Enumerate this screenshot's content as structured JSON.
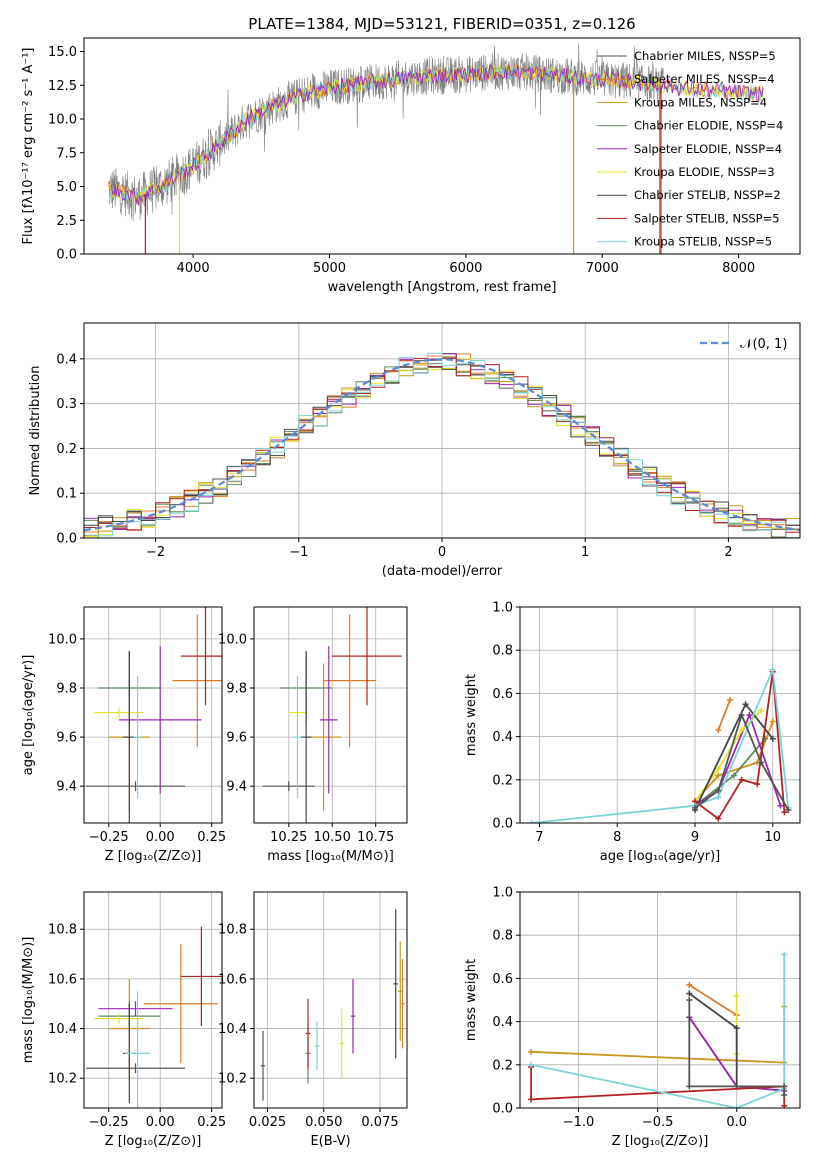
{
  "colors": [
    "#555555",
    "#e07b28",
    "#c9951d",
    "#5d8a5d",
    "#9b27b0",
    "#e6e22a",
    "#444444",
    "#b22222",
    "#7fd3d8"
  ],
  "chart_data": [
    {
      "type": "line",
      "id": "spectrum",
      "title": "PLATE=1384, MJD=53121, FIBERID=0351, z=0.126",
      "xlabel": "wavelength [Angstrom, rest frame]",
      "ylabel": "Flux [fλ10⁻¹⁷ erg cm⁻² s⁻¹ A⁻¹]",
      "xlim": [
        3200,
        8450
      ],
      "ylim": [
        0,
        16
      ],
      "xticks": [
        4000,
        5000,
        6000,
        7000,
        8000
      ],
      "yticks": [
        "0.0",
        "2.5",
        "5.0",
        "7.5",
        "10.0",
        "12.5",
        "15.0"
      ],
      "continuum_x": [
        3400,
        3600,
        3800,
        4000,
        4200,
        4400,
        4600,
        4800,
        5000,
        5200,
        5400,
        5600,
        5800,
        6000,
        6200,
        6400,
        6600,
        6800,
        7000,
        7200,
        7400,
        7600,
        7800,
        8000,
        8200
      ],
      "continuum_y": [
        4.8,
        4.2,
        5.2,
        6.5,
        8.2,
        10.0,
        11.0,
        11.8,
        12.3,
        12.6,
        12.8,
        13.1,
        13.2,
        13.3,
        13.5,
        13.5,
        13.3,
        13.1,
        12.9,
        12.8,
        12.5,
        12.3,
        12.1,
        12.0,
        11.8
      ],
      "legend": [
        "Chabrier MILES, N_SSP=5",
        "Salpeter MILES, N_SSP=4",
        "Kroupa MILES, N_SSP=4",
        "Chabrier ELODIE, N_SSP=4",
        "Salpeter ELODIE, N_SSP=4",
        "Kroupa ELODIE, N_SSP=3",
        "Chabrier STELIB, N_SSP=2",
        "Salpeter STELIB, N_SSP=5",
        "Kroupa STELIB, N_SSP=5"
      ]
    },
    {
      "type": "histogram",
      "id": "residuals",
      "xlabel": "(data-model)/error",
      "ylabel": "Normed distribution",
      "xlim": [
        -2.5,
        2.5
      ],
      "ylim": [
        0,
        0.48
      ],
      "xticks": [
        "−2",
        "−1",
        "0",
        "1",
        "2"
      ],
      "yticks": [
        "0.0",
        "0.1",
        "0.2",
        "0.3",
        "0.4"
      ],
      "legend": "𝒩(0, 1)",
      "gaussian": {
        "mean": 0,
        "sigma": 1
      }
    },
    {
      "type": "scatter",
      "id": "age_vs_Z",
      "xlabel": "Z [log₁₀(Z/Z⊙)]",
      "ylabel": "age  [log₁₀(age/yr)]",
      "xlim": [
        -0.37,
        0.3
      ],
      "ylim": [
        9.25,
        10.13
      ],
      "xticks": [
        "−0.25",
        "0.00",
        "0.25"
      ],
      "yticks": [
        "9.4",
        "9.6",
        "9.8",
        "10.0"
      ]
    },
    {
      "type": "scatter",
      "id": "age_vs_mass",
      "xlabel": "mass [log₁₀(M/M⊙)]",
      "xlim": [
        10.05,
        10.93
      ],
      "ylim": [
        9.25,
        10.13
      ],
      "xticks": [
        "10.25",
        "10.50",
        "10.75"
      ],
      "yticks": [
        "9.4",
        "9.6",
        "9.8",
        "10.0"
      ]
    },
    {
      "type": "line",
      "id": "massweight_vs_age",
      "xlabel": "age  [log₁₀(age/yr)]",
      "ylabel": "mass weight",
      "xlim": [
        6.75,
        10.35
      ],
      "ylim": [
        0,
        1
      ],
      "xticks": [
        "7",
        "8",
        "9",
        "10"
      ],
      "yticks": [
        "0.0",
        "0.2",
        "0.4",
        "0.6",
        "0.8",
        "1.0"
      ]
    },
    {
      "type": "scatter",
      "id": "mass_vs_Z",
      "xlabel": "Z [log₁₀(Z/Z⊙)]",
      "ylabel": "mass [log₁₀(M/M⊙)]",
      "xlim": [
        -0.37,
        0.3
      ],
      "ylim": [
        10.08,
        10.95
      ],
      "xticks": [
        "−0.25",
        "0.00",
        "0.25"
      ],
      "yticks": [
        "10.2",
        "10.4",
        "10.6",
        "10.8"
      ]
    },
    {
      "type": "scatter",
      "id": "mass_vs_ebv",
      "xlabel": "E(B-V)",
      "xlim": [
        0.019,
        0.087
      ],
      "ylim": [
        10.08,
        10.95
      ],
      "xticks": [
        "0.025",
        "0.050",
        "0.075"
      ],
      "yticks": [
        "10.2",
        "10.4",
        "10.6",
        "10.8"
      ]
    },
    {
      "type": "line",
      "id": "massweight_vs_Z",
      "xlabel": "Z [log₁₀(Z/Z⊙)]",
      "ylabel": "mass weight",
      "xlim": [
        -1.37,
        0.4
      ],
      "ylim": [
        0,
        1
      ],
      "xticks": [
        "−1.0",
        "−0.5",
        "0.0"
      ],
      "yticks": [
        "0.0",
        "0.2",
        "0.4",
        "0.6",
        "0.8",
        "1.0"
      ]
    }
  ]
}
